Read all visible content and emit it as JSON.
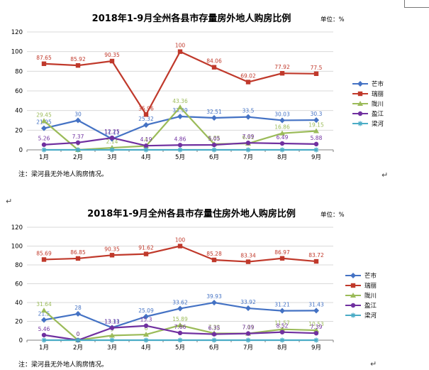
{
  "page": {
    "para_mark": "↵"
  },
  "colors": {
    "mangshi": "#4472c4",
    "ruili": "#c0392b",
    "longchuan": "#9bbb59",
    "yingjiang": "#7030a0",
    "lianghe": "#4bacc6"
  },
  "chart_data": [
    {
      "type": "line",
      "title": "2018年1-9月全州各县市存量房外地人购房比例",
      "unit": "单位：%",
      "categories": [
        "1月",
        "2月",
        "3月",
        "4月",
        "5月",
        "6月",
        "7月",
        "8月",
        "9月"
      ],
      "ylim": [
        0,
        120
      ],
      "yticks": [
        0,
        20,
        40,
        60,
        80,
        100,
        120
      ],
      "grid": "horizontal",
      "legend_position": "right",
      "note": "注：梁河县无外地人购房情况。",
      "series": [
        {
          "name": "芒市",
          "key": "mangshi",
          "marker": "diamond",
          "values": [
            21.95,
            30,
            11.11,
            25.32,
            33.99,
            32.51,
            33.5,
            30.03,
            30.3
          ]
        },
        {
          "name": "瑞丽",
          "key": "ruili",
          "marker": "square",
          "values": [
            87.65,
            85.92,
            90.35,
            35.96,
            100,
            84.06,
            69.02,
            77.92,
            77.5
          ]
        },
        {
          "name": "陇川",
          "key": "longchuan",
          "marker": "triangle",
          "values": [
            29.45,
            0,
            2.14,
            4,
            43.36,
            5.85,
            6.51,
            16.86,
            19.15
          ]
        },
        {
          "name": "盈江",
          "key": "yingjiang",
          "marker": "circle",
          "values": [
            5.26,
            7.37,
            12.25,
            4.19,
            4.86,
            5.05,
            7.09,
            6.49,
            5.88
          ]
        },
        {
          "name": "梁河",
          "key": "lianghe",
          "marker": "star",
          "values": [
            0,
            0,
            0,
            0,
            0,
            0,
            0,
            0,
            0
          ]
        }
      ]
    },
    {
      "type": "line",
      "title": "2018年1-9月全州各县市存量住房外地人购房比例",
      "unit": "单位：%",
      "categories": [
        "1月",
        "2月",
        "3月",
        "4月",
        "5月",
        "6月",
        "7月",
        "8月",
        "9月"
      ],
      "ylim": [
        0,
        120
      ],
      "yticks": [
        0,
        20,
        40,
        60,
        80,
        100,
        120
      ],
      "grid": "horizontal",
      "legend_position": "right",
      "note": "注：梁河县无外地人购房情况。",
      "series": [
        {
          "name": "芒市",
          "key": "mangshi",
          "marker": "diamond",
          "values": [
            21.5,
            28,
            13.33,
            25.09,
            33.62,
            39.93,
            33.92,
            31.21,
            31.43
          ]
        },
        {
          "name": "瑞丽",
          "key": "ruili",
          "marker": "square",
          "values": [
            85.69,
            86.85,
            90.35,
            91.62,
            100,
            85.28,
            83.34,
            86.97,
            83.72
          ]
        },
        {
          "name": "陇川",
          "key": "longchuan",
          "marker": "triangle",
          "values": [
            31.64,
            0,
            5,
            6,
            15.89,
            7.32,
            7.11,
            11.57,
            10.53
          ]
        },
        {
          "name": "盈江",
          "key": "yingjiang",
          "marker": "circle",
          "values": [
            5.46,
            0,
            13.11,
            15.3,
            7.66,
            6.35,
            7.09,
            8.52,
            7.39
          ]
        },
        {
          "name": "梁河",
          "key": "lianghe",
          "marker": "star",
          "values": [
            0,
            0,
            0,
            0,
            0,
            0,
            0,
            0,
            0
          ]
        }
      ]
    }
  ]
}
